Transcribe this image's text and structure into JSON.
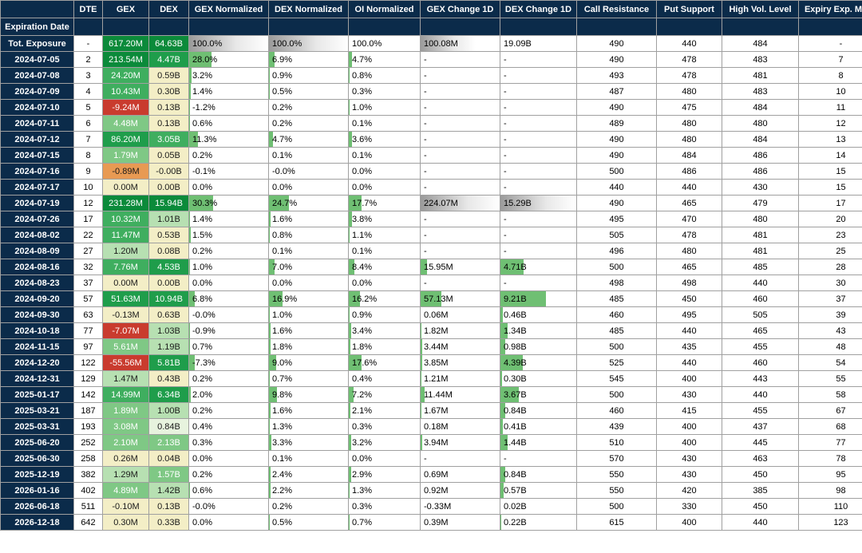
{
  "headers": {
    "exp": "Expiration Date",
    "dte": "DTE",
    "gex": "GEX",
    "dex": "DEX",
    "gex_norm": "GEX Normalized",
    "dex_norm": "DEX Normalized",
    "oi_norm": "OI Normalized",
    "gex_chg": "GEX Change 1D",
    "dex_chg": "DEX Change 1D",
    "call_res": "Call Resistance",
    "put_sup": "Put Support",
    "hvl": "High Vol. Level",
    "emv": "Expiry Exp. Move"
  },
  "heat_colors": {
    "dg5": "#0b8a3a",
    "dg4": "#1f9d4b",
    "dg3": "#3fae5f",
    "dg2": "#7fc885",
    "dg1": "#b7e0b2",
    "lg0": "#e7f3de",
    "yl": "#f3eec6",
    "or": "#e89a53",
    "rd": "#c93b2e"
  },
  "text_dark": "#1a1a1a",
  "bar_color": "#6fbf73",
  "grad_bar": true,
  "rows": [
    {
      "exp": "Tot. Exposure",
      "dte": "-",
      "gex": "617.20M",
      "gex_c": "dg5",
      "dex": "64.63B",
      "dex_c": "dg5",
      "gex_norm": "100.0%",
      "gex_norm_b": 100,
      "gex_norm_grad": true,
      "dex_norm": "100.0%",
      "dex_norm_b": 100,
      "dex_norm_grad": true,
      "oi_norm": "100.0%",
      "oi_norm_b": 0,
      "gex_chg": "100.08M",
      "gex_chg_b": 70,
      "gex_chg_grad": true,
      "dex_chg": "19.09B",
      "dex_chg_b": 0,
      "call_res": "490",
      "put_sup": "440",
      "hvl": "484",
      "emv": "-"
    },
    {
      "exp": "2024-07-05",
      "dte": "2",
      "gex": "213.54M",
      "gex_c": "dg5",
      "dex": "4.47B",
      "dex_c": "dg4",
      "gex_norm": "28.0%",
      "gex_norm_b": 28,
      "dex_norm": "6.9%",
      "dex_norm_b": 7,
      "oi_norm": "4.7%",
      "oi_norm_b": 5,
      "gex_chg": "-",
      "gex_chg_b": 0,
      "dex_chg": "-",
      "dex_chg_b": 0,
      "call_res": "490",
      "put_sup": "478",
      "hvl": "483",
      "emv": "7"
    },
    {
      "exp": "2024-07-08",
      "dte": "3",
      "gex": "24.20M",
      "gex_c": "dg3",
      "dex": "0.59B",
      "dex_c": "yl",
      "gex_norm": "3.2%",
      "gex_norm_b": 3,
      "dex_norm": "0.9%",
      "dex_norm_b": 1,
      "oi_norm": "0.8%",
      "oi_norm_b": 1,
      "gex_chg": "-",
      "gex_chg_b": 0,
      "dex_chg": "-",
      "dex_chg_b": 0,
      "call_res": "493",
      "put_sup": "478",
      "hvl": "481",
      "emv": "8"
    },
    {
      "exp": "2024-07-09",
      "dte": "4",
      "gex": "10.43M",
      "gex_c": "dg3",
      "dex": "0.30B",
      "dex_c": "yl",
      "gex_norm": "1.4%",
      "gex_norm_b": 2,
      "dex_norm": "0.5%",
      "dex_norm_b": 1,
      "oi_norm": "0.3%",
      "oi_norm_b": 0,
      "gex_chg": "-",
      "gex_chg_b": 0,
      "dex_chg": "-",
      "dex_chg_b": 0,
      "call_res": "487",
      "put_sup": "480",
      "hvl": "483",
      "emv": "10"
    },
    {
      "exp": "2024-07-10",
      "dte": "5",
      "gex": "-9.24M",
      "gex_c": "rd",
      "dex": "0.13B",
      "dex_c": "yl",
      "gex_norm": "-1.2%",
      "gex_norm_b": 1,
      "dex_norm": "0.2%",
      "dex_norm_b": 0,
      "oi_norm": "1.0%",
      "oi_norm_b": 1,
      "gex_chg": "-",
      "gex_chg_b": 0,
      "dex_chg": "-",
      "dex_chg_b": 0,
      "call_res": "490",
      "put_sup": "475",
      "hvl": "484",
      "emv": "11"
    },
    {
      "exp": "2024-07-11",
      "dte": "6",
      "gex": "4.48M",
      "gex_c": "dg2",
      "dex": "0.13B",
      "dex_c": "yl",
      "gex_norm": "0.6%",
      "gex_norm_b": 1,
      "dex_norm": "0.2%",
      "dex_norm_b": 0,
      "oi_norm": "0.1%",
      "oi_norm_b": 0,
      "gex_chg": "-",
      "gex_chg_b": 0,
      "dex_chg": "-",
      "dex_chg_b": 0,
      "call_res": "489",
      "put_sup": "480",
      "hvl": "480",
      "emv": "12"
    },
    {
      "exp": "2024-07-12",
      "dte": "7",
      "gex": "86.20M",
      "gex_c": "dg4",
      "dex": "3.05B",
      "dex_c": "dg3",
      "gex_norm": "11.3%",
      "gex_norm_b": 11,
      "dex_norm": "4.7%",
      "dex_norm_b": 5,
      "oi_norm": "3.6%",
      "oi_norm_b": 4,
      "gex_chg": "-",
      "gex_chg_b": 0,
      "dex_chg": "-",
      "dex_chg_b": 0,
      "call_res": "490",
      "put_sup": "480",
      "hvl": "484",
      "emv": "13"
    },
    {
      "exp": "2024-07-15",
      "dte": "8",
      "gex": "1.79M",
      "gex_c": "dg2",
      "dex": "0.05B",
      "dex_c": "yl",
      "gex_norm": "0.2%",
      "gex_norm_b": 0,
      "dex_norm": "0.1%",
      "dex_norm_b": 0,
      "oi_norm": "0.1%",
      "oi_norm_b": 0,
      "gex_chg": "-",
      "gex_chg_b": 0,
      "dex_chg": "-",
      "dex_chg_b": 0,
      "call_res": "490",
      "put_sup": "484",
      "hvl": "486",
      "emv": "14"
    },
    {
      "exp": "2024-07-16",
      "dte": "9",
      "gex": "-0.89M",
      "gex_c": "or",
      "dex": "-0.00B",
      "dex_c": "yl",
      "gex_norm": "-0.1%",
      "gex_norm_b": 0,
      "dex_norm": "-0.0%",
      "dex_norm_b": 0,
      "oi_norm": "0.0%",
      "oi_norm_b": 0,
      "gex_chg": "-",
      "gex_chg_b": 0,
      "dex_chg": "-",
      "dex_chg_b": 0,
      "call_res": "500",
      "put_sup": "486",
      "hvl": "486",
      "emv": "15"
    },
    {
      "exp": "2024-07-17",
      "dte": "10",
      "gex": "0.00M",
      "gex_c": "yl",
      "dex": "0.00B",
      "dex_c": "yl",
      "gex_norm": "0.0%",
      "gex_norm_b": 0,
      "dex_norm": "0.0%",
      "dex_norm_b": 0,
      "oi_norm": "0.0%",
      "oi_norm_b": 0,
      "gex_chg": "-",
      "gex_chg_b": 0,
      "dex_chg": "-",
      "dex_chg_b": 0,
      "call_res": "440",
      "put_sup": "440",
      "hvl": "430",
      "emv": "15"
    },
    {
      "exp": "2024-07-19",
      "dte": "12",
      "gex": "231.28M",
      "gex_c": "dg5",
      "dex": "15.94B",
      "dex_c": "dg5",
      "gex_norm": "30.3%",
      "gex_norm_b": 30,
      "dex_norm": "24.7%",
      "dex_norm_b": 25,
      "oi_norm": "17.7%",
      "oi_norm_b": 18,
      "gex_chg": "224.07M",
      "gex_chg_b": 100,
      "gex_chg_grad": true,
      "dex_chg": "15.29B",
      "dex_chg_b": 100,
      "dex_chg_grad": true,
      "call_res": "490",
      "put_sup": "465",
      "hvl": "479",
      "emv": "17"
    },
    {
      "exp": "2024-07-26",
      "dte": "17",
      "gex": "10.32M",
      "gex_c": "dg3",
      "dex": "1.01B",
      "dex_c": "dg1",
      "gex_norm": "1.4%",
      "gex_norm_b": 1,
      "dex_norm": "1.6%",
      "dex_norm_b": 2,
      "oi_norm": "3.8%",
      "oi_norm_b": 4,
      "gex_chg": "-",
      "gex_chg_b": 0,
      "dex_chg": "-",
      "dex_chg_b": 0,
      "call_res": "495",
      "put_sup": "470",
      "hvl": "480",
      "emv": "20"
    },
    {
      "exp": "2024-08-02",
      "dte": "22",
      "gex": "11.47M",
      "gex_c": "dg3",
      "dex": "0.53B",
      "dex_c": "yl",
      "gex_norm": "1.5%",
      "gex_norm_b": 2,
      "dex_norm": "0.8%",
      "dex_norm_b": 1,
      "oi_norm": "1.1%",
      "oi_norm_b": 1,
      "gex_chg": "-",
      "gex_chg_b": 0,
      "dex_chg": "-",
      "dex_chg_b": 0,
      "call_res": "505",
      "put_sup": "478",
      "hvl": "481",
      "emv": "23"
    },
    {
      "exp": "2024-08-09",
      "dte": "27",
      "gex": "1.20M",
      "gex_c": "dg1",
      "dex": "0.08B",
      "dex_c": "yl",
      "gex_norm": "0.2%",
      "gex_norm_b": 0,
      "dex_norm": "0.1%",
      "dex_norm_b": 0,
      "oi_norm": "0.1%",
      "oi_norm_b": 0,
      "gex_chg": "-",
      "gex_chg_b": 0,
      "dex_chg": "-",
      "dex_chg_b": 0,
      "call_res": "496",
      "put_sup": "480",
      "hvl": "481",
      "emv": "25"
    },
    {
      "exp": "2024-08-16",
      "dte": "32",
      "gex": "7.76M",
      "gex_c": "dg3",
      "dex": "4.53B",
      "dex_c": "dg4",
      "gex_norm": "1.0%",
      "gex_norm_b": 1,
      "dex_norm": "7.0%",
      "dex_norm_b": 7,
      "oi_norm": "8.4%",
      "oi_norm_b": 8,
      "gex_chg": "15.95M",
      "gex_chg_b": 8,
      "dex_chg": "4.71B",
      "dex_chg_b": 31,
      "call_res": "500",
      "put_sup": "465",
      "hvl": "485",
      "emv": "28"
    },
    {
      "exp": "2024-08-23",
      "dte": "37",
      "gex": "0.00M",
      "gex_c": "yl",
      "dex": "0.00B",
      "dex_c": "yl",
      "gex_norm": "0.0%",
      "gex_norm_b": 0,
      "dex_norm": "0.0%",
      "dex_norm_b": 0,
      "oi_norm": "0.0%",
      "oi_norm_b": 0,
      "gex_chg": "-",
      "gex_chg_b": 0,
      "dex_chg": "-",
      "dex_chg_b": 0,
      "call_res": "498",
      "put_sup": "498",
      "hvl": "440",
      "emv": "30"
    },
    {
      "exp": "2024-09-20",
      "dte": "57",
      "gex": "51.63M",
      "gex_c": "dg4",
      "dex": "10.94B",
      "dex_c": "dg4",
      "gex_norm": "6.8%",
      "gex_norm_b": 7,
      "dex_norm": "16.9%",
      "dex_norm_b": 17,
      "oi_norm": "16.2%",
      "oi_norm_b": 16,
      "gex_chg": "57.13M",
      "gex_chg_b": 26,
      "dex_chg": "9.21B",
      "dex_chg_b": 60,
      "call_res": "485",
      "put_sup": "450",
      "hvl": "460",
      "emv": "37"
    },
    {
      "exp": "2024-09-30",
      "dte": "63",
      "gex": "-0.13M",
      "gex_c": "yl",
      "dex": "0.63B",
      "dex_c": "yl",
      "gex_norm": "-0.0%",
      "gex_norm_b": 0,
      "dex_norm": "1.0%",
      "dex_norm_b": 1,
      "oi_norm": "0.9%",
      "oi_norm_b": 1,
      "gex_chg": "0.06M",
      "gex_chg_b": 0,
      "dex_chg": "0.46B",
      "dex_chg_b": 3,
      "call_res": "460",
      "put_sup": "495",
      "hvl": "505",
      "emv": "39"
    },
    {
      "exp": "2024-10-18",
      "dte": "77",
      "gex": "-7.07M",
      "gex_c": "rd",
      "dex": "1.03B",
      "dex_c": "dg1",
      "gex_norm": "-0.9%",
      "gex_norm_b": 1,
      "dex_norm": "1.6%",
      "dex_norm_b": 2,
      "oi_norm": "3.4%",
      "oi_norm_b": 3,
      "gex_chg": "1.82M",
      "gex_chg_b": 1,
      "dex_chg": "1.34B",
      "dex_chg_b": 9,
      "call_res": "485",
      "put_sup": "440",
      "hvl": "465",
      "emv": "43"
    },
    {
      "exp": "2024-11-15",
      "dte": "97",
      "gex": "5.61M",
      "gex_c": "dg2",
      "dex": "1.19B",
      "dex_c": "dg1",
      "gex_norm": "0.7%",
      "gex_norm_b": 1,
      "dex_norm": "1.8%",
      "dex_norm_b": 2,
      "oi_norm": "1.8%",
      "oi_norm_b": 2,
      "gex_chg": "3.44M",
      "gex_chg_b": 2,
      "dex_chg": "0.98B",
      "dex_chg_b": 6,
      "call_res": "500",
      "put_sup": "435",
      "hvl": "455",
      "emv": "48"
    },
    {
      "exp": "2024-12-20",
      "dte": "122",
      "gex": "-55.56M",
      "gex_c": "rd",
      "dex": "5.81B",
      "dex_c": "dg4",
      "gex_norm": "-7.3%",
      "gex_norm_b": 7,
      "dex_norm": "9.0%",
      "dex_norm_b": 9,
      "oi_norm": "17.6%",
      "oi_norm_b": 18,
      "gex_chg": "3.85M",
      "gex_chg_b": 2,
      "dex_chg": "4.39B",
      "dex_chg_b": 29,
      "call_res": "525",
      "put_sup": "440",
      "hvl": "460",
      "emv": "54"
    },
    {
      "exp": "2024-12-31",
      "dte": "129",
      "gex": "1.47M",
      "gex_c": "dg1",
      "dex": "0.43B",
      "dex_c": "yl",
      "gex_norm": "0.2%",
      "gex_norm_b": 0,
      "dex_norm": "0.7%",
      "dex_norm_b": 1,
      "oi_norm": "0.4%",
      "oi_norm_b": 0,
      "gex_chg": "1.21M",
      "gex_chg_b": 1,
      "dex_chg": "0.30B",
      "dex_chg_b": 2,
      "call_res": "545",
      "put_sup": "400",
      "hvl": "443",
      "emv": "55"
    },
    {
      "exp": "2025-01-17",
      "dte": "142",
      "gex": "14.99M",
      "gex_c": "dg3",
      "dex": "6.34B",
      "dex_c": "dg4",
      "gex_norm": "2.0%",
      "gex_norm_b": 2,
      "dex_norm": "9.8%",
      "dex_norm_b": 10,
      "oi_norm": "7.2%",
      "oi_norm_b": 7,
      "gex_chg": "11.44M",
      "gex_chg_b": 5,
      "dex_chg": "3.67B",
      "dex_chg_b": 24,
      "call_res": "500",
      "put_sup": "430",
      "hvl": "440",
      "emv": "58"
    },
    {
      "exp": "2025-03-21",
      "dte": "187",
      "gex": "1.89M",
      "gex_c": "dg2",
      "dex": "1.00B",
      "dex_c": "dg1",
      "gex_norm": "0.2%",
      "gex_norm_b": 0,
      "dex_norm": "1.6%",
      "dex_norm_b": 2,
      "oi_norm": "2.1%",
      "oi_norm_b": 2,
      "gex_chg": "1.67M",
      "gex_chg_b": 1,
      "dex_chg": "0.84B",
      "dex_chg_b": 6,
      "call_res": "460",
      "put_sup": "415",
      "hvl": "455",
      "emv": "67"
    },
    {
      "exp": "2025-03-31",
      "dte": "193",
      "gex": "3.08M",
      "gex_c": "dg2",
      "dex": "0.84B",
      "dex_c": "lg0",
      "gex_norm": "0.4%",
      "gex_norm_b": 0,
      "dex_norm": "1.3%",
      "dex_norm_b": 1,
      "oi_norm": "0.3%",
      "oi_norm_b": 0,
      "gex_chg": "0.18M",
      "gex_chg_b": 0,
      "dex_chg": "0.41B",
      "dex_chg_b": 3,
      "call_res": "439",
      "put_sup": "400",
      "hvl": "437",
      "emv": "68"
    },
    {
      "exp": "2025-06-20",
      "dte": "252",
      "gex": "2.10M",
      "gex_c": "dg2",
      "dex": "2.13B",
      "dex_c": "dg2",
      "gex_norm": "0.3%",
      "gex_norm_b": 0,
      "dex_norm": "3.3%",
      "dex_norm_b": 3,
      "oi_norm": "3.2%",
      "oi_norm_b": 3,
      "gex_chg": "3.94M",
      "gex_chg_b": 2,
      "dex_chg": "1.44B",
      "dex_chg_b": 9,
      "call_res": "510",
      "put_sup": "400",
      "hvl": "445",
      "emv": "77"
    },
    {
      "exp": "2025-06-30",
      "dte": "258",
      "gex": "0.26M",
      "gex_c": "yl",
      "dex": "0.04B",
      "dex_c": "yl",
      "gex_norm": "0.0%",
      "gex_norm_b": 0,
      "dex_norm": "0.1%",
      "dex_norm_b": 0,
      "oi_norm": "0.0%",
      "oi_norm_b": 0,
      "gex_chg": "-",
      "gex_chg_b": 0,
      "dex_chg": "-",
      "dex_chg_b": 0,
      "call_res": "570",
      "put_sup": "430",
      "hvl": "463",
      "emv": "78"
    },
    {
      "exp": "2025-12-19",
      "dte": "382",
      "gex": "1.29M",
      "gex_c": "dg1",
      "dex": "1.57B",
      "dex_c": "dg2",
      "gex_norm": "0.2%",
      "gex_norm_b": 0,
      "dex_norm": "2.4%",
      "dex_norm_b": 2,
      "oi_norm": "2.9%",
      "oi_norm_b": 3,
      "gex_chg": "0.69M",
      "gex_chg_b": 0,
      "dex_chg": "0.84B",
      "dex_chg_b": 6,
      "call_res": "550",
      "put_sup": "430",
      "hvl": "450",
      "emv": "95"
    },
    {
      "exp": "2026-01-16",
      "dte": "402",
      "gex": "4.89M",
      "gex_c": "dg2",
      "dex": "1.42B",
      "dex_c": "dg1",
      "gex_norm": "0.6%",
      "gex_norm_b": 1,
      "dex_norm": "2.2%",
      "dex_norm_b": 2,
      "oi_norm": "1.3%",
      "oi_norm_b": 1,
      "gex_chg": "0.92M",
      "gex_chg_b": 0,
      "dex_chg": "0.57B",
      "dex_chg_b": 4,
      "call_res": "550",
      "put_sup": "420",
      "hvl": "385",
      "emv": "98"
    },
    {
      "exp": "2026-06-18",
      "dte": "511",
      "gex": "-0.10M",
      "gex_c": "yl",
      "dex": "0.13B",
      "dex_c": "yl",
      "gex_norm": "-0.0%",
      "gex_norm_b": 0,
      "dex_norm": "0.2%",
      "dex_norm_b": 0,
      "oi_norm": "0.3%",
      "oi_norm_b": 0,
      "gex_chg": "-0.33M",
      "gex_chg_b": 0,
      "dex_chg": "0.02B",
      "dex_chg_b": 0,
      "call_res": "500",
      "put_sup": "330",
      "hvl": "450",
      "emv": "110"
    },
    {
      "exp": "2026-12-18",
      "dte": "642",
      "gex": "0.30M",
      "gex_c": "yl",
      "dex": "0.33B",
      "dex_c": "yl",
      "gex_norm": "0.0%",
      "gex_norm_b": 0,
      "dex_norm": "0.5%",
      "dex_norm_b": 1,
      "oi_norm": "0.7%",
      "oi_norm_b": 1,
      "gex_chg": "0.39M",
      "gex_chg_b": 0,
      "dex_chg": "0.22B",
      "dex_chg_b": 1,
      "call_res": "615",
      "put_sup": "400",
      "hvl": "440",
      "emv": "123"
    }
  ]
}
